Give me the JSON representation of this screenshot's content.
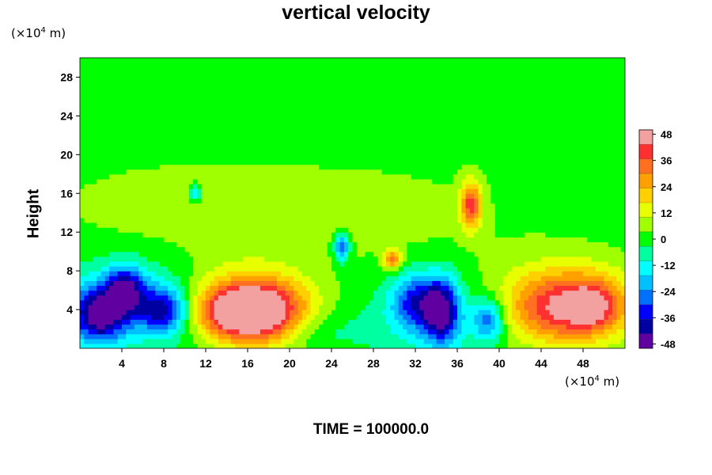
{
  "chart_data": {
    "type": "heatmap",
    "title": "vertical velocity",
    "ylabel": "Height",
    "x_unit": {
      "prefix": "(×10",
      "exp": "4",
      "suffix": " m)"
    },
    "y_unit": {
      "prefix": "(×10",
      "exp": "4",
      "suffix": " m)"
    },
    "footer": "TIME = 100000.0",
    "xlim": [
      0,
      52
    ],
    "ylim": [
      0,
      30
    ],
    "x_ticks": [
      4,
      8,
      12,
      16,
      20,
      24,
      28,
      32,
      36,
      40,
      44,
      48
    ],
    "y_ticks": [
      4,
      8,
      12,
      16,
      20,
      24,
      28
    ],
    "colorbar": {
      "range": [
        -50,
        50
      ],
      "ticks": [
        48,
        36,
        24,
        12,
        0,
        -12,
        -24,
        -36,
        -48
      ],
      "colors": [
        "#f3a0a0",
        "#ff3030",
        "#ff7020",
        "#ffa000",
        "#ffd000",
        "#e8ff00",
        "#a0ff00",
        "#00ff00",
        "#00ffa0",
        "#00ffff",
        "#00c0ff",
        "#0070ff",
        "#0000ff",
        "#0000a0",
        "#6000a0"
      ]
    },
    "features": [
      {
        "x": 17.2,
        "y": 3.8,
        "sx": 3.3,
        "sy": 2.3,
        "value": 48
      },
      {
        "x": 14.5,
        "y": 3.8,
        "sx": 2.8,
        "sy": 1.9,
        "value": 26
      },
      {
        "x": 15.5,
        "y": 5.5,
        "sx": 4.5,
        "sy": 3.0,
        "value": 10
      },
      {
        "x": 46.5,
        "y": 4.2,
        "sx": 4.0,
        "sy": 2.6,
        "value": 40
      },
      {
        "x": 49.0,
        "y": 4.5,
        "sx": 1.5,
        "sy": 1.6,
        "value": 18
      },
      {
        "x": 46.0,
        "y": 5.5,
        "sx": 5.5,
        "sy": 3.3,
        "value": 9
      },
      {
        "x": 37.3,
        "y": 14.8,
        "sx": 0.7,
        "sy": 1.7,
        "value": 38
      },
      {
        "x": 29.8,
        "y": 9.2,
        "sx": 0.6,
        "sy": 0.7,
        "value": 30
      },
      {
        "x": 1.8,
        "y": 3.5,
        "sx": 1.8,
        "sy": 2.0,
        "value": -42
      },
      {
        "x": 4.3,
        "y": 6.2,
        "sx": 1.3,
        "sy": 1.6,
        "value": -35
      },
      {
        "x": 8.0,
        "y": 4.0,
        "sx": 1.7,
        "sy": 1.6,
        "value": -33
      },
      {
        "x": 5.0,
        "y": 4.5,
        "sx": 4.5,
        "sy": 3.0,
        "value": -16
      },
      {
        "x": 34.5,
        "y": 4.0,
        "sx": 1.2,
        "sy": 2.4,
        "value": -40
      },
      {
        "x": 32.0,
        "y": 5.0,
        "sx": 1.6,
        "sy": 2.0,
        "value": -28
      },
      {
        "x": 34.0,
        "y": 3.0,
        "sx": 4.5,
        "sy": 2.8,
        "value": -12
      },
      {
        "x": 39.0,
        "y": 3.0,
        "sx": 1.0,
        "sy": 1.5,
        "value": -28
      },
      {
        "x": 25.0,
        "y": 10.5,
        "sx": 0.5,
        "sy": 1.0,
        "value": -32
      },
      {
        "x": 11.0,
        "y": 16.0,
        "sx": 0.4,
        "sy": 0.6,
        "value": -22
      },
      {
        "x": 22.0,
        "y": 2.0,
        "sx": 3.0,
        "sy": 1.5,
        "value": -8
      },
      {
        "x": 25.0,
        "y": 14.0,
        "sx": 12.0,
        "sy": 4.0,
        "value": 6
      },
      {
        "x": 8.0,
        "y": 15.0,
        "sx": 8.0,
        "sy": 3.0,
        "value": 5
      }
    ]
  }
}
